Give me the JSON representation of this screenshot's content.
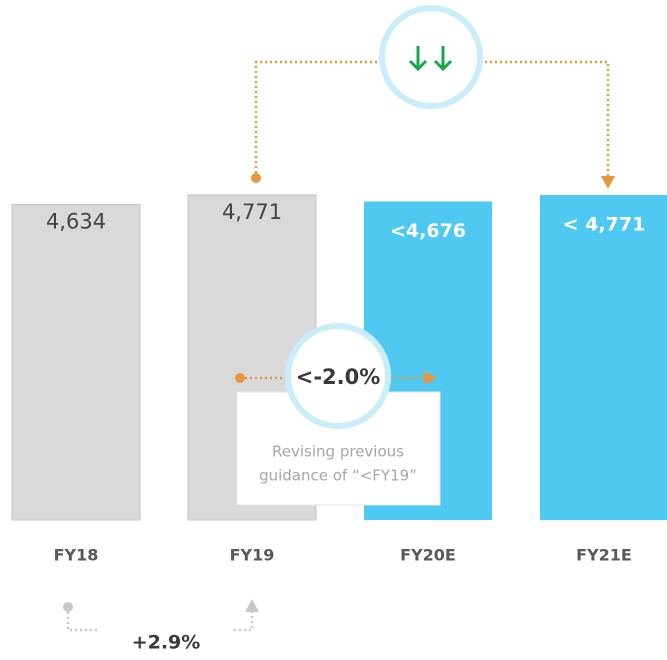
{
  "chart_data": {
    "type": "bar",
    "categories": [
      "FY18",
      "FY19",
      "FY20E",
      "FY21E"
    ],
    "values": [
      4634,
      4771,
      4676,
      4771
    ],
    "value_labels": [
      "4,634",
      "4,771",
      "<4,676",
      "< 4,771"
    ],
    "colors": [
      "#d9d9d9",
      "#d9d9d9",
      "#4fc8f2",
      "#4fc8f2"
    ],
    "ylim": [
      0,
      5000
    ],
    "annotations": {
      "change_fy20": "<-2.0%",
      "note_line1": "Revising previous",
      "note_line2": "guidance of “<FY19”",
      "change_fy19": "+2.9%"
    }
  }
}
